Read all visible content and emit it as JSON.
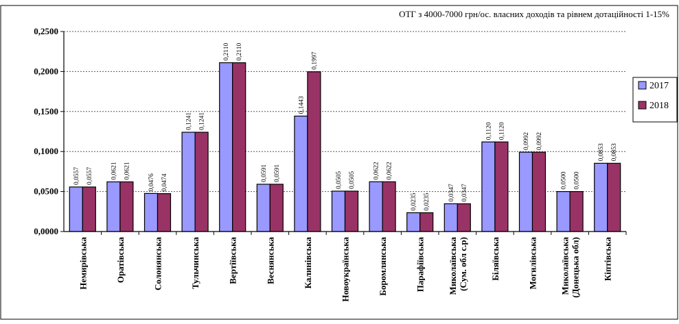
{
  "chart_data": {
    "type": "bar",
    "title": "ОТГ з 4000-7000 грн/ос. власних доходів та рівнем дотаційності 1-15%",
    "categories": [
      [
        "Немирівська"
      ],
      [
        "Оратівська"
      ],
      [
        "Солонянська"
      ],
      [
        "Тульчинська"
      ],
      [
        "Вертіївська"
      ],
      [
        "Веснянська"
      ],
      [
        "Калинівська"
      ],
      [
        "Новоукраїнська"
      ],
      [
        "Боромлянська"
      ],
      [
        "Парафіївська"
      ],
      [
        "Миколаївська",
        "(Сум. обл с.р)"
      ],
      [
        "Біляївська"
      ],
      [
        "Могилівська"
      ],
      [
        "Миколаївська",
        "(Донецька обл)"
      ],
      [
        "Кіптівська"
      ]
    ],
    "series": [
      {
        "name": "2017",
        "color": "#9999ff",
        "values": [
          0.0557,
          0.0621,
          0.0476,
          0.1241,
          0.211,
          0.0591,
          0.1443,
          0.0505,
          0.0622,
          0.0235,
          0.0347,
          0.112,
          0.0992,
          0.05,
          0.0853
        ],
        "labels": [
          "0,0557",
          "0,0621",
          "0,0476",
          "0,1241",
          "0,2110",
          "0,0591",
          "0,1443",
          "0,0505",
          "0,0622",
          "0,0235",
          "0,0347",
          "0,1120",
          "0,0992",
          "0,0500",
          "0,0853"
        ]
      },
      {
        "name": "2018",
        "color": "#993366",
        "values": [
          0.0557,
          0.0621,
          0.0474,
          0.1241,
          0.211,
          0.0591,
          0.1997,
          0.0505,
          0.0622,
          0.0235,
          0.0347,
          0.112,
          0.0992,
          0.05,
          0.0853
        ],
        "labels": [
          "0,0557",
          "0,0621",
          "0,0474",
          "0,1241",
          "0,2110",
          "0,0591",
          "0,1997",
          "0,0505",
          "0,0622",
          "0,0235",
          "0,0347",
          "0,1120",
          "0,0992",
          "0,0500",
          "0,0853"
        ]
      }
    ],
    "ylim": [
      0,
      0.25
    ],
    "yticks": [
      0,
      0.05,
      0.1,
      0.15,
      0.2,
      0.25
    ],
    "ytick_labels": [
      "0,0000",
      "0,0500",
      "0,1000",
      "0,1500",
      "0,2000",
      "0,2500"
    ],
    "grid": "horizontal dotted",
    "legend_position": "right"
  }
}
